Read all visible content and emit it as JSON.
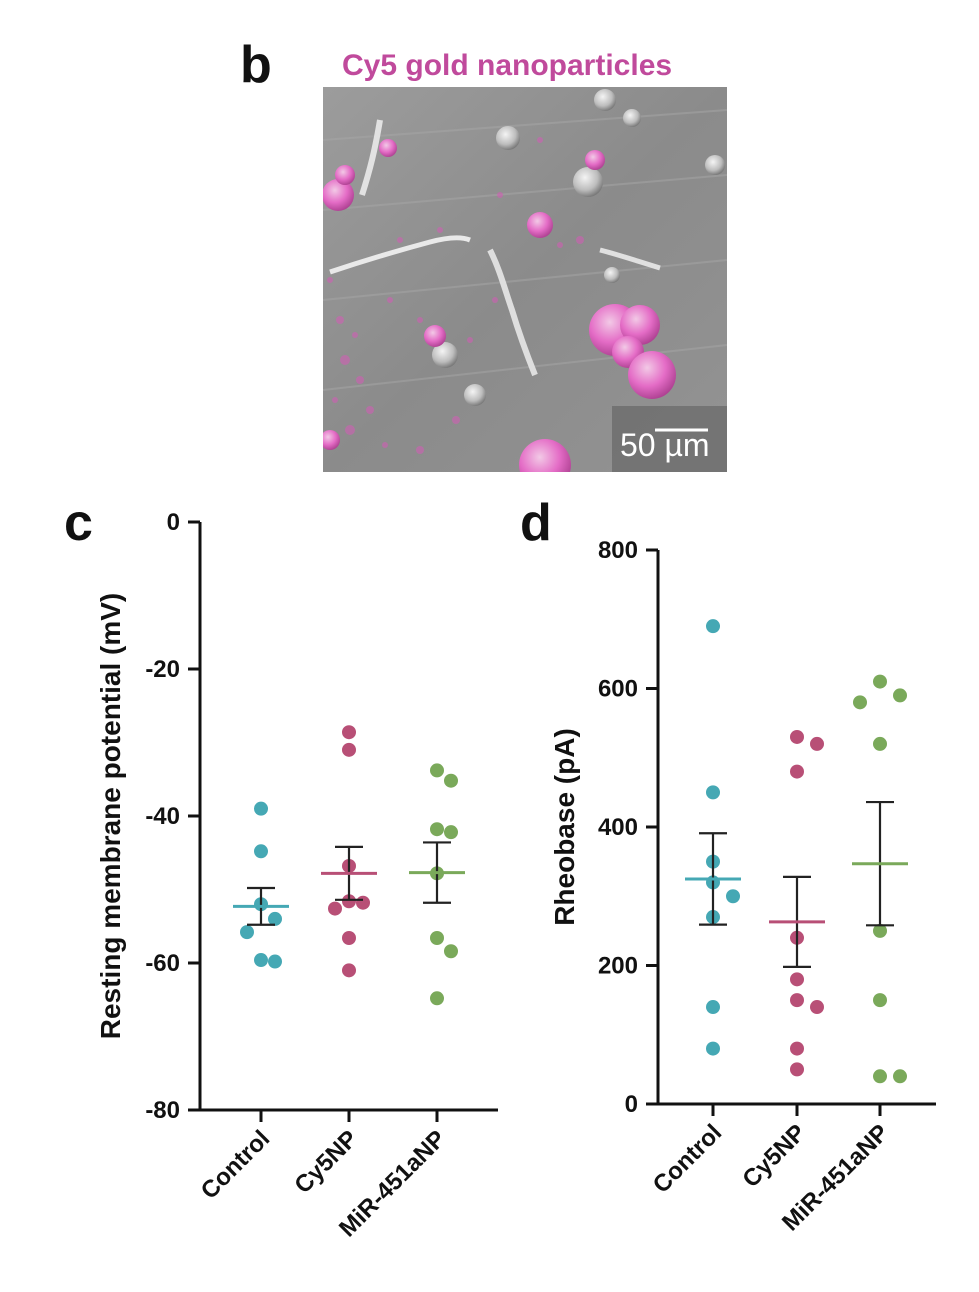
{
  "panel_b": {
    "letter": "b",
    "title": "Cy5 gold nanoparticles",
    "title_color": "#c04a9c",
    "scale_bar_label": "50 µm",
    "image_description_colors": {
      "background": "#8e8e8e",
      "stain": "#e05ac0"
    }
  },
  "chart_data": [
    {
      "panel": "c",
      "type": "scatter",
      "title": "",
      "xlabel": "",
      "ylabel": "Resting membrane potential (mV)",
      "ylim": [
        -80,
        0
      ],
      "yticks": [
        0,
        -20,
        -40,
        -60,
        -80
      ],
      "categories": [
        "Control",
        "Cy5NP",
        "MiR-451aNP"
      ],
      "grid": false,
      "series": [
        {
          "category": "Control",
          "color": "#45a8b4",
          "points": [
            -39.0,
            -44.8,
            -52.0,
            -54.0,
            -55.8,
            -59.6,
            -59.8
          ],
          "mean": -52.3,
          "sem": 2.5
        },
        {
          "category": "Cy5NP",
          "color": "#b84f76",
          "points": [
            -28.6,
            -31.0,
            -46.8,
            -51.6,
            -51.8,
            -52.6,
            -56.6,
            -61.0
          ],
          "mean": -47.8,
          "sem": 3.6
        },
        {
          "category": "MiR-451aNP",
          "color": "#7aa95a",
          "points": [
            -33.8,
            -35.2,
            -41.8,
            -42.2,
            -47.8,
            -56.6,
            -58.4,
            -64.8
          ],
          "mean": -47.7,
          "sem": 4.1
        }
      ]
    },
    {
      "panel": "d",
      "type": "scatter",
      "title": "",
      "xlabel": "",
      "ylabel": "Rheobase (pA)",
      "ylim": [
        0,
        800
      ],
      "yticks": [
        0,
        200,
        400,
        600,
        800
      ],
      "categories": [
        "Control",
        "Cy5NP",
        "MiR-451aNP"
      ],
      "grid": false,
      "series": [
        {
          "category": "Control",
          "color": "#45a8b4",
          "points": [
            690,
            450,
            350,
            320,
            300,
            270,
            140,
            80
          ],
          "mean": 325,
          "sem": 66
        },
        {
          "category": "Cy5NP",
          "color": "#b84f76",
          "points": [
            530,
            520,
            480,
            240,
            180,
            150,
            140,
            80,
            50
          ],
          "mean": 263,
          "sem": 65
        },
        {
          "category": "MiR-451aNP",
          "color": "#7aa95a",
          "points": [
            610,
            590,
            580,
            520,
            250,
            150,
            40,
            40
          ],
          "mean": 347,
          "sem": 89
        }
      ]
    }
  ]
}
